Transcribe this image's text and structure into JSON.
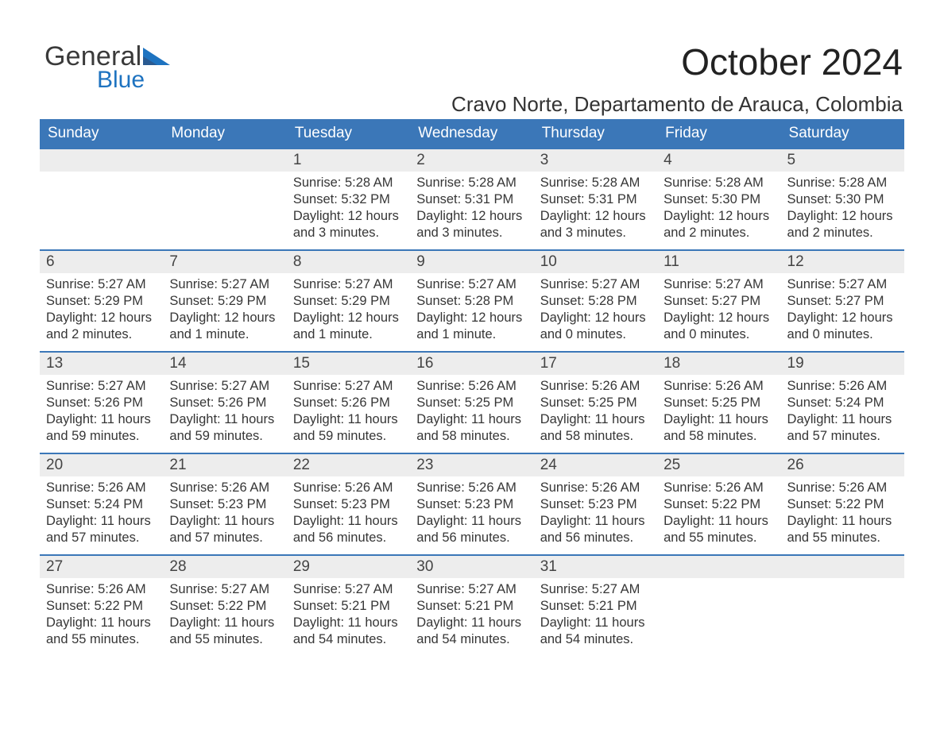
{
  "logo": {
    "line1": "General",
    "line2": "Blue"
  },
  "title": {
    "month": "October 2024",
    "location": "Cravo Norte, Departamento de Arauca, Colombia"
  },
  "calendar": {
    "header_bg": "#3b77b8",
    "row_divider": "#3b77b8",
    "daynum_bg": "#ededed",
    "days_of_week": [
      "Sunday",
      "Monday",
      "Tuesday",
      "Wednesday",
      "Thursday",
      "Friday",
      "Saturday"
    ],
    "lead_empty": 2,
    "days": [
      {
        "n": "1",
        "sunrise": "Sunrise: 5:28 AM",
        "sunset": "Sunset: 5:32 PM",
        "dl1": "Daylight: 12 hours",
        "dl2": "and 3 minutes."
      },
      {
        "n": "2",
        "sunrise": "Sunrise: 5:28 AM",
        "sunset": "Sunset: 5:31 PM",
        "dl1": "Daylight: 12 hours",
        "dl2": "and 3 minutes."
      },
      {
        "n": "3",
        "sunrise": "Sunrise: 5:28 AM",
        "sunset": "Sunset: 5:31 PM",
        "dl1": "Daylight: 12 hours",
        "dl2": "and 3 minutes."
      },
      {
        "n": "4",
        "sunrise": "Sunrise: 5:28 AM",
        "sunset": "Sunset: 5:30 PM",
        "dl1": "Daylight: 12 hours",
        "dl2": "and 2 minutes."
      },
      {
        "n": "5",
        "sunrise": "Sunrise: 5:28 AM",
        "sunset": "Sunset: 5:30 PM",
        "dl1": "Daylight: 12 hours",
        "dl2": "and 2 minutes."
      },
      {
        "n": "6",
        "sunrise": "Sunrise: 5:27 AM",
        "sunset": "Sunset: 5:29 PM",
        "dl1": "Daylight: 12 hours",
        "dl2": "and 2 minutes."
      },
      {
        "n": "7",
        "sunrise": "Sunrise: 5:27 AM",
        "sunset": "Sunset: 5:29 PM",
        "dl1": "Daylight: 12 hours",
        "dl2": "and 1 minute."
      },
      {
        "n": "8",
        "sunrise": "Sunrise: 5:27 AM",
        "sunset": "Sunset: 5:29 PM",
        "dl1": "Daylight: 12 hours",
        "dl2": "and 1 minute."
      },
      {
        "n": "9",
        "sunrise": "Sunrise: 5:27 AM",
        "sunset": "Sunset: 5:28 PM",
        "dl1": "Daylight: 12 hours",
        "dl2": "and 1 minute."
      },
      {
        "n": "10",
        "sunrise": "Sunrise: 5:27 AM",
        "sunset": "Sunset: 5:28 PM",
        "dl1": "Daylight: 12 hours",
        "dl2": "and 0 minutes."
      },
      {
        "n": "11",
        "sunrise": "Sunrise: 5:27 AM",
        "sunset": "Sunset: 5:27 PM",
        "dl1": "Daylight: 12 hours",
        "dl2": "and 0 minutes."
      },
      {
        "n": "12",
        "sunrise": "Sunrise: 5:27 AM",
        "sunset": "Sunset: 5:27 PM",
        "dl1": "Daylight: 12 hours",
        "dl2": "and 0 minutes."
      },
      {
        "n": "13",
        "sunrise": "Sunrise: 5:27 AM",
        "sunset": "Sunset: 5:26 PM",
        "dl1": "Daylight: 11 hours",
        "dl2": "and 59 minutes."
      },
      {
        "n": "14",
        "sunrise": "Sunrise: 5:27 AM",
        "sunset": "Sunset: 5:26 PM",
        "dl1": "Daylight: 11 hours",
        "dl2": "and 59 minutes."
      },
      {
        "n": "15",
        "sunrise": "Sunrise: 5:27 AM",
        "sunset": "Sunset: 5:26 PM",
        "dl1": "Daylight: 11 hours",
        "dl2": "and 59 minutes."
      },
      {
        "n": "16",
        "sunrise": "Sunrise: 5:26 AM",
        "sunset": "Sunset: 5:25 PM",
        "dl1": "Daylight: 11 hours",
        "dl2": "and 58 minutes."
      },
      {
        "n": "17",
        "sunrise": "Sunrise: 5:26 AM",
        "sunset": "Sunset: 5:25 PM",
        "dl1": "Daylight: 11 hours",
        "dl2": "and 58 minutes."
      },
      {
        "n": "18",
        "sunrise": "Sunrise: 5:26 AM",
        "sunset": "Sunset: 5:25 PM",
        "dl1": "Daylight: 11 hours",
        "dl2": "and 58 minutes."
      },
      {
        "n": "19",
        "sunrise": "Sunrise: 5:26 AM",
        "sunset": "Sunset: 5:24 PM",
        "dl1": "Daylight: 11 hours",
        "dl2": "and 57 minutes."
      },
      {
        "n": "20",
        "sunrise": "Sunrise: 5:26 AM",
        "sunset": "Sunset: 5:24 PM",
        "dl1": "Daylight: 11 hours",
        "dl2": "and 57 minutes."
      },
      {
        "n": "21",
        "sunrise": "Sunrise: 5:26 AM",
        "sunset": "Sunset: 5:23 PM",
        "dl1": "Daylight: 11 hours",
        "dl2": "and 57 minutes."
      },
      {
        "n": "22",
        "sunrise": "Sunrise: 5:26 AM",
        "sunset": "Sunset: 5:23 PM",
        "dl1": "Daylight: 11 hours",
        "dl2": "and 56 minutes."
      },
      {
        "n": "23",
        "sunrise": "Sunrise: 5:26 AM",
        "sunset": "Sunset: 5:23 PM",
        "dl1": "Daylight: 11 hours",
        "dl2": "and 56 minutes."
      },
      {
        "n": "24",
        "sunrise": "Sunrise: 5:26 AM",
        "sunset": "Sunset: 5:23 PM",
        "dl1": "Daylight: 11 hours",
        "dl2": "and 56 minutes."
      },
      {
        "n": "25",
        "sunrise": "Sunrise: 5:26 AM",
        "sunset": "Sunset: 5:22 PM",
        "dl1": "Daylight: 11 hours",
        "dl2": "and 55 minutes."
      },
      {
        "n": "26",
        "sunrise": "Sunrise: 5:26 AM",
        "sunset": "Sunset: 5:22 PM",
        "dl1": "Daylight: 11 hours",
        "dl2": "and 55 minutes."
      },
      {
        "n": "27",
        "sunrise": "Sunrise: 5:26 AM",
        "sunset": "Sunset: 5:22 PM",
        "dl1": "Daylight: 11 hours",
        "dl2": "and 55 minutes."
      },
      {
        "n": "28",
        "sunrise": "Sunrise: 5:27 AM",
        "sunset": "Sunset: 5:22 PM",
        "dl1": "Daylight: 11 hours",
        "dl2": "and 55 minutes."
      },
      {
        "n": "29",
        "sunrise": "Sunrise: 5:27 AM",
        "sunset": "Sunset: 5:21 PM",
        "dl1": "Daylight: 11 hours",
        "dl2": "and 54 minutes."
      },
      {
        "n": "30",
        "sunrise": "Sunrise: 5:27 AM",
        "sunset": "Sunset: 5:21 PM",
        "dl1": "Daylight: 11 hours",
        "dl2": "and 54 minutes."
      },
      {
        "n": "31",
        "sunrise": "Sunrise: 5:27 AM",
        "sunset": "Sunset: 5:21 PM",
        "dl1": "Daylight: 11 hours",
        "dl2": "and 54 minutes."
      }
    ]
  }
}
